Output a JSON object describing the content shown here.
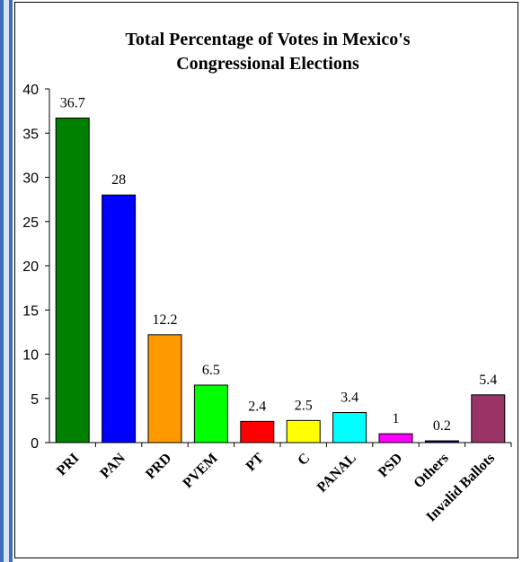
{
  "chart_data": {
    "type": "bar",
    "title_lines": [
      "Total Percentage of Votes in Mexico's",
      "Congressional Elections"
    ],
    "categories": [
      "PRI",
      "PAN",
      "PRD",
      "PVEM",
      "PT",
      "C",
      "PANAL",
      "PSD",
      "Others",
      "Invalid Ballots"
    ],
    "values": [
      36.7,
      28,
      12.2,
      6.5,
      2.4,
      2.5,
      3.4,
      1,
      0.2,
      5.4
    ],
    "value_labels": [
      "36.7",
      "28",
      "12.2",
      "6.5",
      "2.4",
      "2.5",
      "3.4",
      "1",
      "0.2",
      "5.4"
    ],
    "colors": [
      "#008000",
      "#0000ff",
      "#ff9900",
      "#00ff00",
      "#ff0000",
      "#ffff00",
      "#00ffff",
      "#ff00ff",
      "#000080",
      "#993366"
    ],
    "ylim": [
      0,
      40
    ],
    "yticks": [
      "0",
      "5",
      "10",
      "15",
      "20",
      "25",
      "30",
      "35",
      "40"
    ],
    "grid": false,
    "legend": "none"
  }
}
